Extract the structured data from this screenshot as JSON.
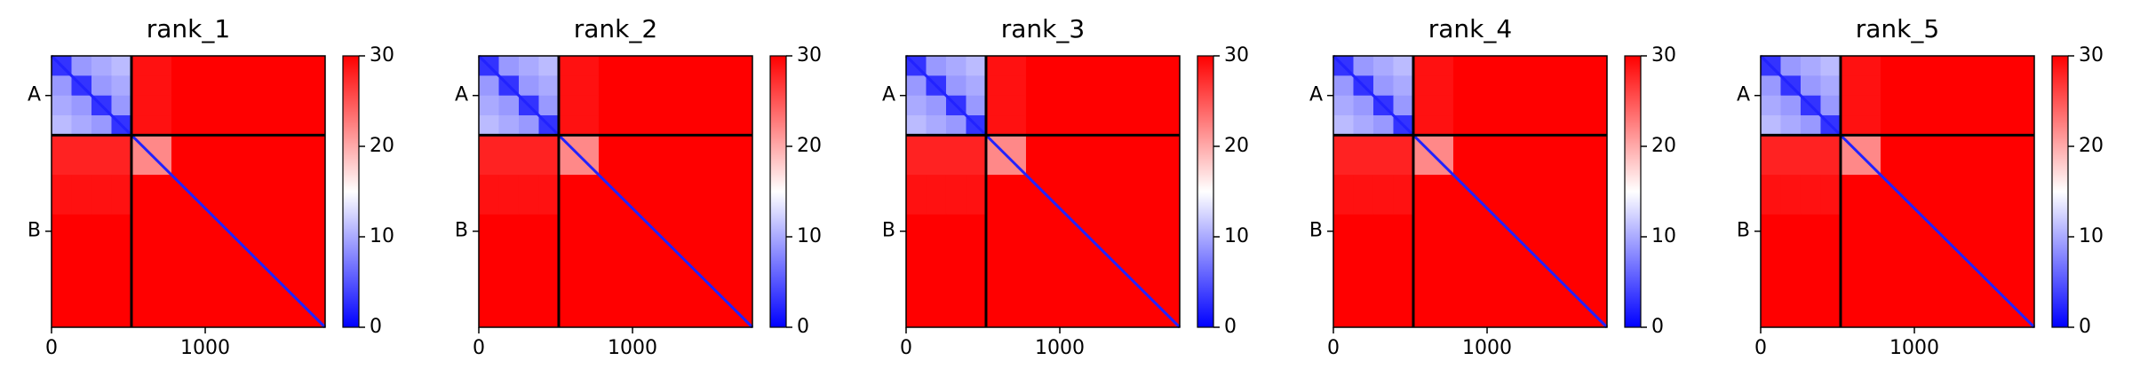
{
  "chart_data": [
    {
      "type": "heatmap",
      "title": "rank_1",
      "bins": [
        0,
        130,
        260,
        390,
        520,
        780,
        1040,
        1300,
        1560,
        1780
      ],
      "xlim": [
        0,
        1780
      ],
      "ylim": [
        1780,
        0
      ],
      "xticks": [
        0,
        1000
      ],
      "yticks": [
        {
          "value": 260,
          "label": "A"
        },
        {
          "value": 1150,
          "label": "B"
        }
      ],
      "boundaries": [
        520
      ],
      "diagonal": 2,
      "clim": [
        0,
        30
      ],
      "cticks": [
        0,
        10,
        20,
        30
      ],
      "cmap": [
        "#0000ff",
        "#ffffff",
        "#ff0000"
      ],
      "z": [
        [
          3,
          9,
          10,
          11,
          29,
          30,
          30,
          30,
          30
        ],
        [
          9,
          3,
          9,
          10,
          29,
          30,
          30,
          30,
          30
        ],
        [
          10,
          9,
          3,
          9,
          29,
          30,
          30,
          30,
          30
        ],
        [
          11,
          10,
          9,
          3,
          29,
          30,
          30,
          30,
          30
        ],
        [
          28,
          28,
          28,
          28,
          22,
          30,
          30,
          30,
          30
        ],
        [
          29,
          29,
          29,
          29,
          30,
          30,
          30,
          30,
          30
        ],
        [
          30,
          30,
          30,
          30,
          30,
          30,
          30,
          30,
          30
        ],
        [
          30,
          30,
          30,
          30,
          30,
          30,
          30,
          30,
          30
        ],
        [
          30,
          30,
          30,
          30,
          30,
          30,
          30,
          30,
          30
        ]
      ]
    },
    {
      "type": "heatmap",
      "title": "rank_2",
      "bins": [
        0,
        130,
        260,
        390,
        520,
        780,
        1040,
        1300,
        1560,
        1780
      ],
      "xlim": [
        0,
        1780
      ],
      "ylim": [
        1780,
        0
      ],
      "xticks": [
        0,
        1000
      ],
      "yticks": [
        {
          "value": 260,
          "label": "A"
        },
        {
          "value": 1150,
          "label": "B"
        }
      ],
      "boundaries": [
        520
      ],
      "diagonal": 2,
      "clim": [
        0,
        30
      ],
      "cticks": [
        0,
        10,
        20,
        30
      ],
      "cmap": [
        "#0000ff",
        "#ffffff",
        "#ff0000"
      ],
      "z": [
        [
          3,
          9,
          10,
          11,
          29,
          30,
          30,
          30,
          30
        ],
        [
          9,
          3,
          9,
          10,
          29,
          30,
          30,
          30,
          30
        ],
        [
          10,
          9,
          3,
          9,
          29,
          30,
          30,
          30,
          30
        ],
        [
          11,
          10,
          9,
          3,
          29,
          30,
          30,
          30,
          30
        ],
        [
          28,
          28,
          28,
          28,
          22,
          30,
          30,
          30,
          30
        ],
        [
          29,
          29,
          29,
          29,
          30,
          30,
          30,
          30,
          30
        ],
        [
          30,
          30,
          30,
          30,
          30,
          30,
          30,
          30,
          30
        ],
        [
          30,
          30,
          30,
          30,
          30,
          30,
          30,
          30,
          30
        ],
        [
          30,
          30,
          30,
          30,
          30,
          30,
          30,
          30,
          30
        ]
      ]
    },
    {
      "type": "heatmap",
      "title": "rank_3",
      "bins": [
        0,
        130,
        260,
        390,
        520,
        780,
        1040,
        1300,
        1560,
        1780
      ],
      "xlim": [
        0,
        1780
      ],
      "ylim": [
        1780,
        0
      ],
      "xticks": [
        0,
        1000
      ],
      "yticks": [
        {
          "value": 260,
          "label": "A"
        },
        {
          "value": 1150,
          "label": "B"
        }
      ],
      "boundaries": [
        520
      ],
      "diagonal": 2,
      "clim": [
        0,
        30
      ],
      "cticks": [
        0,
        10,
        20,
        30
      ],
      "cmap": [
        "#0000ff",
        "#ffffff",
        "#ff0000"
      ],
      "z": [
        [
          3,
          9,
          10,
          11,
          29,
          30,
          30,
          30,
          30
        ],
        [
          9,
          3,
          9,
          10,
          29,
          30,
          30,
          30,
          30
        ],
        [
          10,
          9,
          3,
          9,
          29,
          30,
          30,
          30,
          30
        ],
        [
          11,
          10,
          9,
          3,
          29,
          30,
          30,
          30,
          30
        ],
        [
          28,
          28,
          28,
          28,
          22,
          30,
          30,
          30,
          30
        ],
        [
          29,
          29,
          29,
          29,
          30,
          30,
          30,
          30,
          30
        ],
        [
          30,
          30,
          30,
          30,
          30,
          30,
          30,
          30,
          30
        ],
        [
          30,
          30,
          30,
          30,
          30,
          30,
          30,
          30,
          30
        ],
        [
          30,
          30,
          30,
          30,
          30,
          30,
          30,
          30,
          30
        ]
      ]
    },
    {
      "type": "heatmap",
      "title": "rank_4",
      "bins": [
        0,
        130,
        260,
        390,
        520,
        780,
        1040,
        1300,
        1560,
        1780
      ],
      "xlim": [
        0,
        1780
      ],
      "ylim": [
        1780,
        0
      ],
      "xticks": [
        0,
        1000
      ],
      "yticks": [
        {
          "value": 260,
          "label": "A"
        },
        {
          "value": 1150,
          "label": "B"
        }
      ],
      "boundaries": [
        520
      ],
      "diagonal": 2,
      "clim": [
        0,
        30
      ],
      "cticks": [
        0,
        10,
        20,
        30
      ],
      "cmap": [
        "#0000ff",
        "#ffffff",
        "#ff0000"
      ],
      "z": [
        [
          3,
          9,
          10,
          11,
          29,
          30,
          30,
          30,
          30
        ],
        [
          9,
          3,
          9,
          10,
          29,
          30,
          30,
          30,
          30
        ],
        [
          10,
          9,
          3,
          9,
          29,
          30,
          30,
          30,
          30
        ],
        [
          11,
          10,
          9,
          3,
          29,
          30,
          30,
          30,
          30
        ],
        [
          28,
          28,
          28,
          28,
          22,
          30,
          30,
          30,
          30
        ],
        [
          29,
          29,
          29,
          29,
          30,
          30,
          30,
          30,
          30
        ],
        [
          30,
          30,
          30,
          30,
          30,
          30,
          30,
          30,
          30
        ],
        [
          30,
          30,
          30,
          30,
          30,
          30,
          30,
          30,
          30
        ],
        [
          30,
          30,
          30,
          30,
          30,
          30,
          30,
          30,
          30
        ]
      ]
    },
    {
      "type": "heatmap",
      "title": "rank_5",
      "bins": [
        0,
        130,
        260,
        390,
        520,
        780,
        1040,
        1300,
        1560,
        1780
      ],
      "xlim": [
        0,
        1780
      ],
      "ylim": [
        1780,
        0
      ],
      "xticks": [
        0,
        1000
      ],
      "yticks": [
        {
          "value": 260,
          "label": "A"
        },
        {
          "value": 1150,
          "label": "B"
        }
      ],
      "boundaries": [
        520
      ],
      "diagonal": 2,
      "clim": [
        0,
        30
      ],
      "cticks": [
        0,
        10,
        20,
        30
      ],
      "cmap": [
        "#0000ff",
        "#ffffff",
        "#ff0000"
      ],
      "z": [
        [
          3,
          9,
          10,
          11,
          29,
          30,
          30,
          30,
          30
        ],
        [
          9,
          3,
          9,
          10,
          29,
          30,
          30,
          30,
          30
        ],
        [
          10,
          9,
          3,
          9,
          29,
          30,
          30,
          30,
          30
        ],
        [
          11,
          10,
          9,
          3,
          29,
          30,
          30,
          30,
          30
        ],
        [
          28,
          28,
          28,
          28,
          22,
          30,
          30,
          30,
          30
        ],
        [
          29,
          29,
          29,
          29,
          30,
          30,
          30,
          30,
          30
        ],
        [
          30,
          30,
          30,
          30,
          30,
          30,
          30,
          30,
          30
        ],
        [
          30,
          30,
          30,
          30,
          30,
          30,
          30,
          30,
          30
        ],
        [
          30,
          30,
          30,
          30,
          30,
          30,
          30,
          30,
          30
        ]
      ]
    }
  ]
}
